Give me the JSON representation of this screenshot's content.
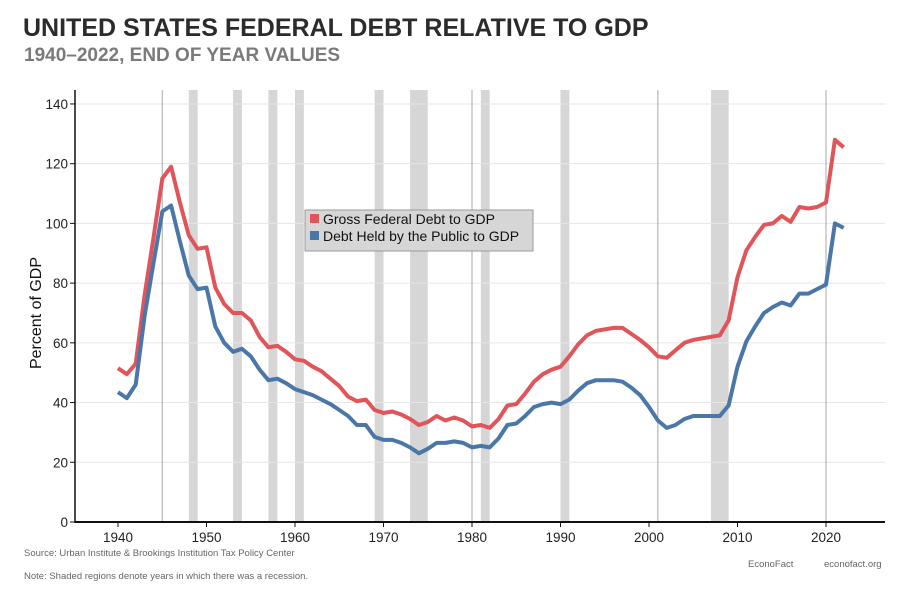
{
  "header": {
    "title": "UNITED STATES FEDERAL DEBT RELATIVE TO GDP",
    "subtitle": "1940–2022, END OF YEAR VALUES"
  },
  "footer": {
    "source": "Source: Urban Institute & Brookings Institution Tax Policy Center",
    "note": "Note: Shaded regions denote years in which there was a recession.",
    "brand": "EconoFact",
    "url": "econofact.org"
  },
  "chart_data": {
    "type": "line",
    "title": "UNITED STATES FEDERAL DEBT RELATIVE TO GDP",
    "subtitle": "1940–2022, END OF YEAR VALUES",
    "xlabel": "",
    "ylabel": "Percent of GDP",
    "xlim": [
      1935,
      2027
    ],
    "ylim": [
      0,
      150
    ],
    "x_ticks": [
      1940,
      1950,
      1960,
      1970,
      1980,
      1990,
      2000,
      2010,
      2020
    ],
    "x_tick_labels": [
      "1940",
      "1950",
      "1960",
      "1970",
      "1980",
      "1990",
      "2000",
      "2010",
      "2020"
    ],
    "y_ticks": [
      0,
      20,
      40,
      60,
      80,
      100,
      120,
      140
    ],
    "y_tick_labels": [
      "0",
      "20",
      "40",
      "60",
      "80",
      "100",
      "120",
      "140"
    ],
    "grid": true,
    "legend_position": "center",
    "recessions": [
      [
        1948,
        1949
      ],
      [
        1953,
        1954
      ],
      [
        1957,
        1958
      ],
      [
        1960,
        1961
      ],
      [
        1969,
        1970
      ],
      [
        1973,
        1975
      ],
      [
        1981,
        1982
      ],
      [
        1990,
        1991
      ],
      [
        2007,
        2009
      ]
    ],
    "reference_lines": [
      1945,
      1980,
      2001,
      2020
    ],
    "recession_color": "#d6d6d6",
    "x": [
      1940,
      1941,
      1942,
      1943,
      1944,
      1945,
      1946,
      1947,
      1948,
      1949,
      1950,
      1951,
      1952,
      1953,
      1954,
      1955,
      1956,
      1957,
      1958,
      1959,
      1960,
      1961,
      1962,
      1963,
      1964,
      1965,
      1966,
      1967,
      1968,
      1969,
      1970,
      1971,
      1972,
      1973,
      1974,
      1975,
      1976,
      1977,
      1978,
      1979,
      1980,
      1981,
      1982,
      1983,
      1984,
      1985,
      1986,
      1987,
      1988,
      1989,
      1990,
      1991,
      1992,
      1993,
      1994,
      1995,
      1996,
      1997,
      1998,
      1999,
      2000,
      2001,
      2002,
      2003,
      2004,
      2005,
      2006,
      2007,
      2008,
      2009,
      2010,
      2011,
      2012,
      2013,
      2014,
      2015,
      2016,
      2017,
      2018,
      2019,
      2020,
      2021,
      2022
    ],
    "series": [
      {
        "name": "Gross Federal Debt to GDP",
        "color": "#e0555a",
        "values": [
          51.5,
          49.5,
          53,
          76,
          95,
          115,
          119,
          107,
          96,
          91.5,
          92,
          78.5,
          73,
          70,
          70,
          67.5,
          62,
          58.5,
          59,
          57,
          54.5,
          54,
          52,
          50.5,
          48,
          45.5,
          42,
          40.5,
          41,
          37.5,
          36.5,
          37,
          36,
          34.5,
          32.5,
          33.5,
          35.5,
          34,
          35,
          34,
          32,
          32.5,
          31.5,
          34.5,
          39,
          39.5,
          43,
          47,
          49.5,
          51,
          52,
          55.5,
          59.5,
          62.5,
          64,
          64.5,
          65,
          65,
          63,
          61,
          58.5,
          55.5,
          55,
          57.5,
          60,
          61,
          61.5,
          62,
          62.5,
          67.5,
          82,
          91,
          95.5,
          99.5,
          100,
          102.5,
          100.5,
          105.5,
          105,
          105.5,
          107,
          128,
          125.5
        ]
      },
      {
        "name": "Debt Held by the Public to GDP",
        "color": "#4a77a8",
        "values": [
          43.5,
          41.5,
          46,
          69,
          86.5,
          104,
          106,
          94,
          82.5,
          78,
          78.5,
          65.5,
          60,
          57,
          58,
          55.5,
          51,
          47.5,
          48,
          46.5,
          44.5,
          43.5,
          42.5,
          41,
          39.5,
          37.5,
          35.5,
          32.5,
          32.5,
          28.5,
          27.5,
          27.5,
          26.5,
          25,
          23,
          24.5,
          26.5,
          26.5,
          27,
          26.5,
          25,
          25.5,
          25,
          28,
          32.5,
          33,
          35.5,
          38.5,
          39.5,
          40,
          39.5,
          41,
          44,
          46.5,
          47.5,
          47.5,
          47.5,
          47,
          45,
          42.5,
          38.5,
          34,
          31.5,
          32.5,
          34.5,
          35.5,
          35.5,
          35.5,
          35.5,
          39,
          52,
          60.5,
          65.5,
          70,
          72,
          73.5,
          72.5,
          76.5,
          76.5,
          78,
          79.5,
          100,
          98.5
        ]
      }
    ]
  }
}
